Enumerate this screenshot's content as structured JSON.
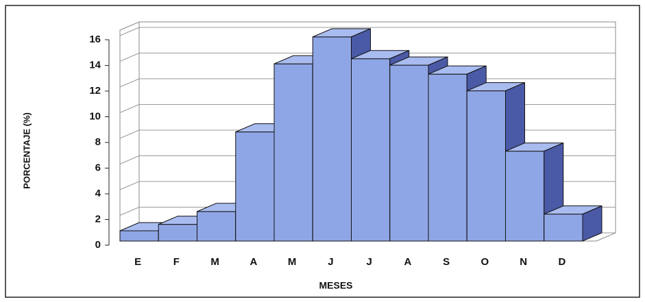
{
  "chart_data": {
    "type": "bar3d",
    "xlabel": "MESES",
    "ylabel": "PORCENTAJE (%)",
    "categories": [
      "E",
      "F",
      "M",
      "A",
      "M",
      "J",
      "J",
      "A",
      "S",
      "O",
      "N",
      "D"
    ],
    "values": [
      0.8,
      1.3,
      2.3,
      8.5,
      13.8,
      15.9,
      14.2,
      13.7,
      13.0,
      11.7,
      7.0,
      2.1
    ],
    "color": "#8fa6e6",
    "ylim": [
      0,
      16
    ],
    "yticks": [
      0,
      2,
      4,
      6,
      8,
      10,
      12,
      14,
      16
    ],
    "grid": true
  }
}
